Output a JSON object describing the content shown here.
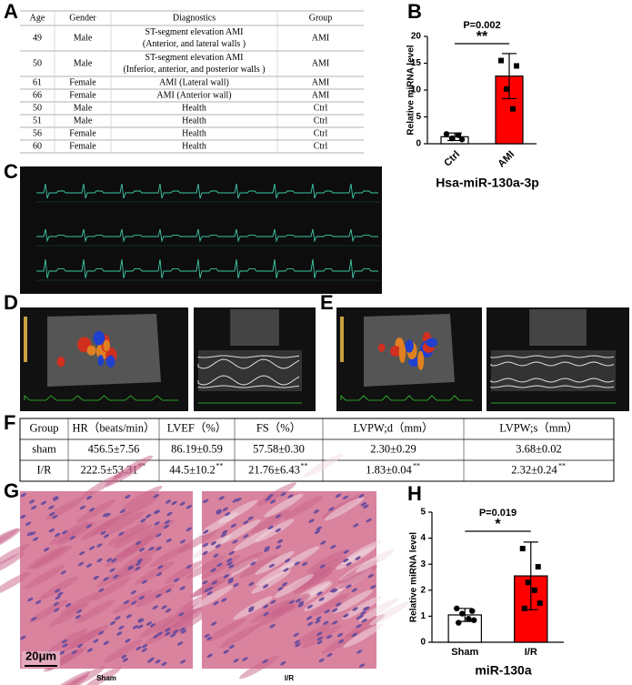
{
  "panel_labels": [
    "A",
    "B",
    "C",
    "D",
    "E",
    "F",
    "G",
    "H"
  ],
  "table_a": {
    "header": [
      "Age",
      "Gender",
      "Diagnostics",
      "Group"
    ],
    "rows": [
      [
        "49",
        "Male",
        [
          "ST-segment elevation AMI",
          "(Anterior, and lateral walls )"
        ],
        "AMI"
      ],
      [
        "50",
        "Male",
        [
          "ST-segment elevation AMI",
          "(Inferior, anterior, and posterior walls )"
        ],
        "AMI"
      ],
      [
        "61",
        "Female",
        [
          "AMI (Lateral wall)"
        ],
        "AMI"
      ],
      [
        "66",
        "Female",
        [
          "AMI (Anterior wall)"
        ],
        "AMI"
      ],
      [
        "50",
        "Male",
        [
          "Health"
        ],
        "Ctrl"
      ],
      [
        "51",
        "Male",
        [
          "Health"
        ],
        "Ctrl"
      ],
      [
        "56",
        "Female",
        [
          "Health"
        ],
        "Ctrl"
      ],
      [
        "60",
        "Female",
        [
          "Health"
        ],
        "Ctrl"
      ]
    ]
  },
  "table_f": {
    "header": [
      "Group",
      "HR（beats/min）",
      "LVEF（%）",
      "FS（%）",
      "LVPW;d（mm）",
      "LVPW;s（mm）"
    ],
    "rows": [
      [
        "sham",
        "456.5±7.56",
        "86.19±0.59",
        "57.58±0.30",
        "2.30±0.29",
        "3.68±0.02"
      ],
      [
        "I/R",
        {
          "text": "222.5±53.31",
          "sup": "**"
        },
        {
          "text": "44.5±10.2",
          "sup": "**"
        },
        {
          "text": "21.76±6.43",
          "sup": "**"
        },
        {
          "text": "1.83±0.04",
          "sup": "**"
        },
        {
          "text": "2.32±0.24",
          "sup": "**"
        }
      ]
    ]
  },
  "chart_data": [
    {
      "type": "bar",
      "title": "Hsa-miR-130a-3p",
      "ylabel": "Relative miRNA level",
      "annotation": "P=0.002",
      "significance": "**",
      "categories": [
        "Ctrl",
        "AMI"
      ],
      "values": [
        1.3,
        12.6
      ],
      "errors": [
        0.7,
        4.2
      ],
      "points": [
        [
          1.8,
          0.8,
          1.0,
          1.6
        ],
        [
          15.5,
          14.5,
          10.2,
          6.5
        ]
      ],
      "colors": [
        "#ffffff",
        "#ff0000"
      ],
      "ylim": [
        0,
        20
      ],
      "yticks": [
        0,
        5,
        10,
        15,
        20
      ]
    },
    {
      "type": "bar",
      "title": "miR-130a",
      "ylabel": "Relative miRNA level",
      "annotation": "P=0.019",
      "significance": "*",
      "categories": [
        "Sham",
        "I/R"
      ],
      "values": [
        1.05,
        2.55
      ],
      "errors": [
        0.25,
        1.3
      ],
      "points": [
        [
          1.3,
          1.2,
          1.1,
          0.9,
          0.85,
          0.75
        ],
        [
          3.6,
          2.9,
          2.3,
          2.0,
          1.5,
          1.3
        ]
      ],
      "colors": [
        "#ffffff",
        "#ff0000"
      ],
      "ylim": [
        0,
        5
      ],
      "yticks": [
        0,
        1,
        2,
        3,
        4,
        5
      ]
    }
  ],
  "histology": {
    "scale_bar": "20μm",
    "labels": [
      "Sham",
      "I/R"
    ]
  }
}
